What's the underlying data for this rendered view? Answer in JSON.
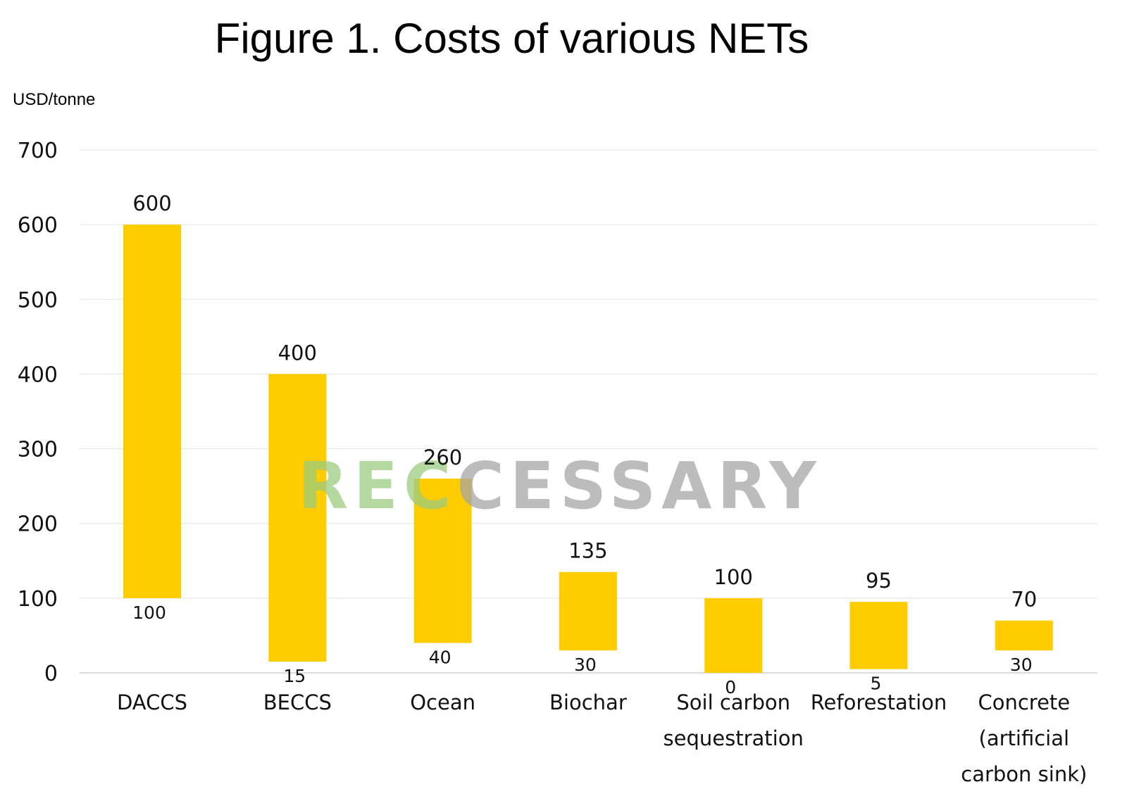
{
  "chart_data": {
    "type": "bar",
    "title": "Figure 1. Costs of various NETs",
    "ylabel": "USD/tonne",
    "xlabel": "",
    "ylim": [
      0,
      700
    ],
    "yticks": [
      0,
      100,
      200,
      300,
      400,
      500,
      600,
      700
    ],
    "grid": true,
    "categories": [
      [
        "DACCS"
      ],
      [
        "BECCS"
      ],
      [
        "Ocean"
      ],
      [
        "Biochar"
      ],
      [
        "Soil carbon",
        "sequestration"
      ],
      [
        "Reforestation"
      ],
      [
        "Concrete",
        "(artificial",
        "carbon sink)"
      ]
    ],
    "low": [
      100,
      15,
      40,
      30,
      0,
      5,
      30
    ],
    "high": [
      600,
      400,
      260,
      135,
      100,
      95,
      70
    ],
    "bar_color": "#FFCC00"
  },
  "watermark": {
    "text": "RECCESSARY",
    "green_part": "REC",
    "gray_part": "CESSARY",
    "green_color": "#9CCB7F",
    "gray_color": "#A6A6A6"
  }
}
